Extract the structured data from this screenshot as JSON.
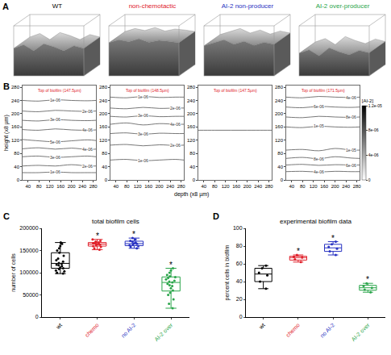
{
  "chart_data": [
    {
      "type": "surface",
      "panel": "A",
      "panels": [
        {
          "title": "WT",
          "color": "#000000",
          "surface_height": [
            0.55,
            0.62,
            0.5,
            0.64,
            0.58,
            0.5,
            0.6,
            0.55
          ]
        },
        {
          "title": "non-chemotactic",
          "color": "#e0202a",
          "surface_height": [
            0.66,
            0.72,
            0.68,
            0.74,
            0.67,
            0.71,
            0.69,
            0.66
          ]
        },
        {
          "title": "AI-2 non-producer",
          "color": "#2832c2",
          "surface_height": [
            0.6,
            0.66,
            0.72,
            0.63,
            0.69,
            0.61,
            0.67,
            0.63
          ]
        },
        {
          "title": "AI-2 over-producer",
          "color": "#2aa54a",
          "surface_height": [
            0.45,
            0.52,
            0.4,
            0.56,
            0.48,
            0.42,
            0.51,
            0.46
          ]
        }
      ]
    },
    {
      "type": "contour",
      "panel": "B",
      "xlabel": "depth (x8 µm)",
      "ylabel": "height (x8 µm)",
      "xlim": [
        20,
        290
      ],
      "xticks": [
        40,
        80,
        120,
        160,
        200,
        240,
        280
      ],
      "ylim": [
        0,
        285
      ],
      "yticks": [
        0,
        40,
        80,
        120,
        160,
        200,
        240,
        280
      ],
      "x": [
        20,
        80,
        140,
        200,
        260,
        290
      ],
      "colorbar": {
        "title": "[AI-2]",
        "range": [
          0,
          1.2e-05
        ],
        "ticks": [
          0,
          {
            "value": 4e-06,
            "label": "4e-06"
          },
          {
            "value": 8e-06,
            "label": "8e-06"
          },
          {
            "value": 1.2e-05,
            "label": "1.2e-05"
          }
        ]
      },
      "panels": [
        {
          "annotation": "Top of biofilm (147.5µm)",
          "contours": [
            {
              "label": "1e-06",
              "level": 1e-06,
              "y": [
                22,
                22,
                24,
                22,
                22,
                22
              ]
            },
            {
              "label": "2e-06",
              "level": 2e-06,
              "y": [
                42,
                44,
                42,
                46,
                42,
                42
              ]
            },
            {
              "label": "3e-06",
              "level": 3e-06,
              "y": [
                70,
                72,
                68,
                70,
                72,
                70
              ]
            },
            {
              "label": "4e-06",
              "level": 4e-06,
              "y": [
                94,
                97,
                93,
                96,
                92,
                93
              ]
            },
            {
              "label": "5e-06",
              "level": 5e-06,
              "y": [
                122,
                118,
                115,
                118,
                121,
                119
              ]
            },
            {
              "label": "4e-06",
              "level": 4e-06,
              "y": [
                152,
                150,
                154,
                151,
                150,
                151
              ]
            },
            {
              "label": "3e-06",
              "level": 3e-06,
              "y": [
                180,
                178,
                182,
                180,
                179,
                180
              ]
            },
            {
              "label": "2e-06",
              "level": 2e-06,
              "y": [
                208,
                206,
                210,
                208,
                207,
                208
              ]
            },
            {
              "label": "1e-06",
              "level": 1e-06,
              "y": [
                240,
                238,
                242,
                240,
                239,
                240
              ]
            }
          ]
        },
        {
          "annotation": "Top of biofilm (148.5µm)",
          "contours": [
            {
              "label": "1e-06",
              "level": 1e-06,
              "y": [
                60,
                62,
                58,
                60,
                62,
                60
              ]
            },
            {
              "label": "2e-06",
              "level": 2e-06,
              "y": [
                105,
                107,
                103,
                106,
                104,
                105
              ]
            },
            {
              "label": "3e-06",
              "level": 3e-06,
              "y": [
                140,
                142,
                138,
                141,
                140,
                140
              ]
            },
            {
              "label": "4e-06",
              "level": 4e-06,
              "y": [
                168,
                172,
                166,
                170,
                168,
                168
              ]
            },
            {
              "label": "3e-06",
              "level": 3e-06,
              "y": [
                192,
                190,
                194,
                191,
                192,
                192
              ]
            },
            {
              "label": "2e-06",
              "level": 2e-06,
              "y": [
                217,
                215,
                219,
                216,
                217,
                217
              ]
            },
            {
              "label": "1e-06",
              "level": 1e-06,
              "y": [
                250,
                248,
                252,
                249,
                250,
                250
              ]
            }
          ]
        },
        {
          "annotation": "Top of biofilm (147.5µm)",
          "contours": [
            {
              "level": 0,
              "y": [
                150,
                150,
                150,
                150,
                150,
                150
              ]
            }
          ]
        },
        {
          "annotation": "Top of biofilm (171.5µm)",
          "contours": [
            {
              "label": "4e-06",
              "level": 4e-06,
              "y": [
                25,
                26,
                24,
                26,
                25,
                25
              ]
            },
            {
              "label": "6e-06",
              "level": 6e-06,
              "y": [
                45,
                47,
                44,
                46,
                45,
                45
              ]
            },
            {
              "label": "8e-06",
              "level": 8e-06,
              "y": [
                65,
                68,
                64,
                70,
                66,
                65
              ]
            },
            {
              "label": "1e-05",
              "level": 1e-05,
              "y": [
                90,
                92,
                88,
                95,
                90,
                90
              ]
            },
            {
              "label": "1e-05",
              "level": 1e-05,
              "y": [
                160,
                158,
                162,
                160,
                159,
                160
              ]
            },
            {
              "label": "8e-06",
              "level": 8e-06,
              "y": [
                190,
                188,
                192,
                190,
                189,
                190
              ]
            },
            {
              "label": "6e-06",
              "level": 6e-06,
              "y": [
                220,
                218,
                222,
                220,
                219,
                220
              ]
            },
            {
              "label": "4e-06",
              "level": 4e-06,
              "y": [
                250,
                248,
                252,
                250,
                249,
                250
              ]
            }
          ]
        }
      ]
    },
    {
      "type": "box",
      "panel": "C",
      "title": "total biofilm cells",
      "ylabel": "number of cells",
      "categories": [
        "wt",
        "chemo",
        "no AI-2",
        "AI-2 over"
      ],
      "colors": [
        "#000000",
        "#e0202a",
        "#2832c2",
        "#2aa54a"
      ],
      "values": [
        [
          98000,
          100000,
          103000,
          105000,
          108000,
          110000,
          112000,
          115000,
          117000,
          118000,
          120000,
          122000,
          125000,
          128000,
          132000,
          138000,
          145000,
          150000,
          155000,
          160000,
          165000,
          168000
        ],
        [
          152000,
          155000,
          158000,
          160000,
          162000,
          163000,
          164000,
          165000,
          166000,
          167000,
          168000,
          170000,
          172000,
          175000
        ],
        [
          155000,
          158000,
          160000,
          162000,
          164000,
          165000,
          166000,
          168000,
          170000,
          172000,
          175000,
          178000
        ],
        [
          20000,
          30000,
          40000,
          50000,
          55000,
          60000,
          65000,
          70000,
          72000,
          75000,
          78000,
          80000,
          82000,
          85000,
          88000,
          90000,
          92000,
          95000,
          100000,
          105000,
          110000
        ]
      ],
      "ylim": [
        0,
        200000
      ],
      "yticks": [
        0,
        50000,
        100000,
        150000,
        200000
      ],
      "annotations": [
        {
          "category": "chemo",
          "text": "*",
          "y": 183000
        },
        {
          "category": "no AI-2",
          "text": "*",
          "y": 186000
        },
        {
          "category": "AI-2 over",
          "text": "*",
          "y": 118000
        }
      ]
    },
    {
      "type": "box",
      "panel": "D",
      "title": "experimental biofilm data",
      "ylabel": "percent cells in biofilm",
      "categories": [
        "wt",
        "chemo",
        "no AI-2",
        "AI-2 over"
      ],
      "colors": [
        "#000000",
        "#e0202a",
        "#2832c2",
        "#2aa54a"
      ],
      "values": [
        [
          32,
          40,
          47,
          50,
          55,
          58
        ],
        [
          62,
          65,
          67,
          68,
          70
        ],
        [
          70,
          74,
          77,
          79,
          82,
          85
        ],
        [
          28,
          31,
          33,
          35,
          38
        ]
      ],
      "ylim": [
        0,
        100
      ],
      "yticks": [
        0,
        20,
        40,
        60,
        80,
        100
      ],
      "annotations": [
        {
          "category": "chemo",
          "text": "*",
          "y": 74
        },
        {
          "category": "no AI-2",
          "text": "*",
          "y": 89
        },
        {
          "category": "AI-2 over",
          "text": "*",
          "y": 42
        }
      ]
    }
  ]
}
